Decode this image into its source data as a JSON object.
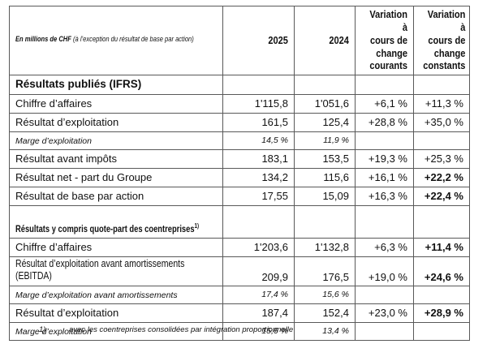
{
  "colors": {
    "background": "#ffffff",
    "border": "#595959",
    "text": "#111111"
  },
  "table": {
    "header": {
      "label_bold": "En millions de CHF",
      "label_rest": " (à l’exception du résultat de base par action)",
      "columns": [
        "2025",
        "2024",
        "Variation à\ncours de\nchange\ncourants",
        "Variation à\ncours de\nchange\nconstants"
      ]
    },
    "rows": [
      {
        "style": "section",
        "label": "Résultats publiés (IFRS)",
        "sup": "",
        "cells": [
          "",
          "",
          "",
          ""
        ],
        "bold_last": false
      },
      {
        "style": "data",
        "label": "Chiffre d’affaires",
        "sup": "",
        "cells": [
          "1'115,8",
          "1'051,6",
          "+6,1 %",
          "+11,3 %"
        ],
        "bold_last": false
      },
      {
        "style": "data",
        "label": "Résultat d’exploitation",
        "sup": "",
        "cells": [
          "161,5",
          "125,4",
          "+28,8 %",
          "+35,0 %"
        ],
        "bold_last": false
      },
      {
        "style": "marge",
        "label": "Marge d’exploitation",
        "sup": "",
        "cells": [
          "14,5 %",
          "11,9 %",
          "",
          ""
        ],
        "bold_last": false
      },
      {
        "style": "data",
        "label": "Résultat avant impôts",
        "sup": "",
        "cells": [
          "183,1",
          "153,5",
          "+19,3 %",
          "+25,3 %"
        ],
        "bold_last": false
      },
      {
        "style": "data",
        "label": "Résultat net - part du Groupe",
        "sup": "",
        "cells": [
          "134,2",
          "115,6",
          "+16,1 %",
          "+22,2 %"
        ],
        "bold_last": true
      },
      {
        "style": "data",
        "label": "Résultat de base par action",
        "sup": "",
        "cells": [
          "17,55",
          "15,09",
          "+16,3 %",
          "+22,4 %"
        ],
        "bold_last": true
      },
      {
        "style": "section2",
        "label": "Résultats y compris quote-part des coentreprises",
        "sup": "1)",
        "cells": [
          "",
          "",
          "",
          ""
        ],
        "bold_last": false
      },
      {
        "style": "data",
        "label": "Chiffre d’affaires",
        "sup": "",
        "cells": [
          "1'203,6",
          "1'132,8",
          "+6,3 %",
          "+11,4 %"
        ],
        "bold_last": true
      },
      {
        "style": "data2",
        "label": "Résultat d’exploitation avant amortissements\n(EBITDA)",
        "sup": "",
        "cells": [
          "209,9",
          "176,5",
          "+19,0 %",
          "+24,6 %"
        ],
        "bold_last": true
      },
      {
        "style": "marge",
        "label": "Marge d’exploitation avant amortissements",
        "sup": "",
        "cells": [
          "17,4 %",
          "15,6 %",
          "",
          ""
        ],
        "bold_last": false
      },
      {
        "style": "data",
        "label": "Résultat d’exploitation",
        "sup": "",
        "cells": [
          "187,4",
          "152,4",
          "+23,0 %",
          "+28,9 %"
        ],
        "bold_last": true
      },
      {
        "style": "marge",
        "label": "Marge d’exploitation",
        "sup": "",
        "cells": [
          "15,6 %",
          "13,4 %",
          "",
          ""
        ],
        "bold_last": false
      }
    ],
    "footnote": {
      "marker": "1)",
      "text": "avec les coentreprises consolidées par intégration proportionnelle"
    }
  }
}
